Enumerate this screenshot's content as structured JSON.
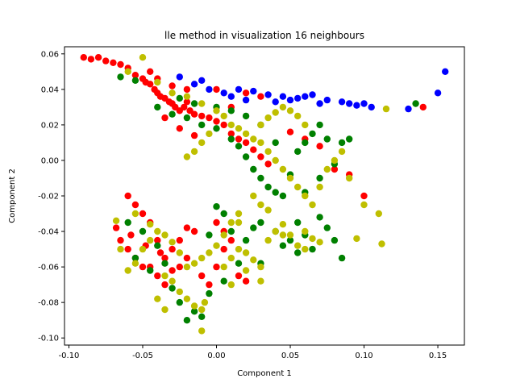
{
  "chart_data": {
    "type": "scatter",
    "title": "lle method in visualization 16 neighbours",
    "xlabel": "Component 1",
    "ylabel": "Component 2",
    "xlim": [
      -0.103,
      0.168
    ],
    "ylim": [
      -0.104,
      0.064
    ],
    "xticks": [
      "-0.10",
      "-0.05",
      "0.00",
      "0.05",
      "0.10",
      "0.15"
    ],
    "xtick_values": [
      -0.1,
      -0.05,
      0.0,
      0.05,
      0.1,
      0.15
    ],
    "yticks": [
      "0.06",
      "0.04",
      "0.02",
      "0.00",
      "-0.02",
      "-0.04",
      "-0.06",
      "-0.08",
      "-0.10"
    ],
    "ytick_values": [
      0.06,
      0.04,
      0.02,
      0.0,
      -0.02,
      -0.04,
      -0.06,
      -0.08,
      -0.1
    ],
    "grid": false,
    "series": [
      {
        "color": "#0000ff",
        "points": [
          [
            -0.025,
            0.047
          ],
          [
            -0.015,
            0.043
          ],
          [
            -0.005,
            0.04
          ],
          [
            0.005,
            0.038
          ],
          [
            0.015,
            0.04
          ],
          [
            0.025,
            0.039
          ],
          [
            0.035,
            0.037
          ],
          [
            0.045,
            0.036
          ],
          [
            0.055,
            0.035
          ],
          [
            0.06,
            0.036
          ],
          [
            0.065,
            0.037
          ],
          [
            0.075,
            0.034
          ],
          [
            0.085,
            0.033
          ],
          [
            0.09,
            0.032
          ],
          [
            0.095,
            0.031
          ],
          [
            0.1,
            0.032
          ],
          [
            0.105,
            0.03
          ],
          [
            0.13,
            0.029
          ],
          [
            0.15,
            0.038
          ],
          [
            0.155,
            0.05
          ],
          [
            -0.01,
            0.045
          ],
          [
            0.01,
            0.036
          ],
          [
            0.02,
            0.034
          ],
          [
            0.04,
            0.033
          ],
          [
            0.05,
            0.034
          ],
          [
            0.07,
            0.032
          ]
        ]
      },
      {
        "color": "#ff0000",
        "points": [
          [
            -0.09,
            0.058
          ],
          [
            -0.085,
            0.057
          ],
          [
            -0.08,
            0.058
          ],
          [
            -0.075,
            0.056
          ],
          [
            -0.07,
            0.055
          ],
          [
            -0.065,
            0.054
          ],
          [
            -0.06,
            0.052
          ],
          [
            -0.055,
            0.048
          ],
          [
            -0.05,
            0.046
          ],
          [
            -0.048,
            0.044
          ],
          [
            -0.045,
            0.043
          ],
          [
            -0.042,
            0.04
          ],
          [
            -0.04,
            0.038
          ],
          [
            -0.038,
            0.036
          ],
          [
            -0.035,
            0.035
          ],
          [
            -0.032,
            0.033
          ],
          [
            -0.03,
            0.032
          ],
          [
            -0.028,
            0.03
          ],
          [
            -0.025,
            0.028
          ],
          [
            -0.022,
            0.03
          ],
          [
            -0.02,
            0.033
          ],
          [
            -0.018,
            0.028
          ],
          [
            -0.015,
            0.026
          ],
          [
            -0.01,
            0.025
          ],
          [
            -0.005,
            0.024
          ],
          [
            0.0,
            0.022
          ],
          [
            0.005,
            0.02
          ],
          [
            0.01,
            0.015
          ],
          [
            0.015,
            0.012
          ],
          [
            0.02,
            0.01
          ],
          [
            0.025,
            0.006
          ],
          [
            0.03,
            0.002
          ],
          [
            0.035,
            -0.002
          ],
          [
            -0.035,
            0.024
          ],
          [
            -0.025,
            0.018
          ],
          [
            -0.015,
            0.014
          ],
          [
            0.05,
            0.016
          ],
          [
            0.06,
            0.012
          ],
          [
            0.07,
            0.008
          ],
          [
            0.08,
            -0.005
          ],
          [
            0.09,
            -0.008
          ],
          [
            0.1,
            -0.02
          ],
          [
            0.14,
            0.03
          ],
          [
            -0.045,
            0.05
          ],
          [
            -0.04,
            0.046
          ],
          [
            -0.03,
            0.042
          ],
          [
            -0.02,
            0.04
          ],
          [
            0.0,
            0.04
          ],
          [
            0.02,
            0.038
          ],
          [
            0.03,
            0.036
          ],
          [
            0.01,
            0.03
          ],
          [
            -0.06,
            -0.02
          ],
          [
            -0.055,
            -0.025
          ],
          [
            -0.05,
            -0.03
          ],
          [
            -0.045,
            -0.035
          ],
          [
            -0.065,
            -0.045
          ],
          [
            -0.06,
            -0.05
          ],
          [
            -0.055,
            -0.055
          ],
          [
            -0.05,
            -0.06
          ],
          [
            -0.04,
            -0.045
          ],
          [
            -0.035,
            -0.055
          ],
          [
            -0.03,
            -0.05
          ],
          [
            -0.025,
            -0.06
          ],
          [
            -0.02,
            -0.055
          ],
          [
            -0.015,
            -0.04
          ],
          [
            -0.01,
            -0.065
          ],
          [
            -0.005,
            -0.07
          ],
          [
            0.0,
            -0.06
          ],
          [
            0.005,
            -0.05
          ],
          [
            0.01,
            -0.045
          ],
          [
            0.015,
            -0.065
          ],
          [
            0.02,
            -0.068
          ],
          [
            -0.045,
            -0.06
          ],
          [
            -0.04,
            -0.065
          ],
          [
            -0.035,
            -0.07
          ],
          [
            -0.03,
            -0.062
          ],
          [
            -0.025,
            -0.045
          ],
          [
            -0.02,
            -0.038
          ],
          [
            -0.068,
            -0.038
          ],
          [
            -0.058,
            -0.042
          ],
          [
            -0.048,
            -0.048
          ],
          [
            -0.038,
            -0.052
          ],
          [
            0.0,
            -0.035
          ],
          [
            0.005,
            -0.04
          ]
        ]
      },
      {
        "color": "#008000",
        "points": [
          [
            -0.065,
            0.047
          ],
          [
            -0.055,
            0.045
          ],
          [
            -0.04,
            0.03
          ],
          [
            -0.03,
            0.026
          ],
          [
            -0.02,
            0.024
          ],
          [
            -0.01,
            0.02
          ],
          [
            0.0,
            0.018
          ],
          [
            0.01,
            0.012
          ],
          [
            0.015,
            0.008
          ],
          [
            0.02,
            0.002
          ],
          [
            0.025,
            -0.005
          ],
          [
            0.03,
            -0.01
          ],
          [
            0.035,
            -0.015
          ],
          [
            0.04,
            -0.018
          ],
          [
            0.045,
            -0.02
          ],
          [
            0.05,
            -0.008
          ],
          [
            0.055,
            0.005
          ],
          [
            0.06,
            0.01
          ],
          [
            0.065,
            0.015
          ],
          [
            0.07,
            0.02
          ],
          [
            0.075,
            0.012
          ],
          [
            0.085,
            0.01
          ],
          [
            0.09,
            0.012
          ],
          [
            0.08,
            -0.002
          ],
          [
            0.07,
            -0.01
          ],
          [
            0.06,
            -0.018
          ],
          [
            0.04,
            0.01
          ],
          [
            0.03,
            0.02
          ],
          [
            0.02,
            0.025
          ],
          [
            0.01,
            0.028
          ],
          [
            0.0,
            0.03
          ],
          [
            -0.015,
            0.032
          ],
          [
            -0.025,
            0.035
          ],
          [
            0.135,
            0.032
          ],
          [
            0.03,
            -0.035
          ],
          [
            0.04,
            -0.04
          ],
          [
            0.05,
            -0.045
          ],
          [
            0.055,
            -0.035
          ],
          [
            0.06,
            -0.042
          ],
          [
            0.07,
            -0.032
          ],
          [
            0.08,
            -0.045
          ],
          [
            0.085,
            -0.055
          ],
          [
            0.075,
            -0.038
          ],
          [
            0.065,
            -0.05
          ],
          [
            -0.055,
            -0.055
          ],
          [
            -0.045,
            -0.062
          ],
          [
            -0.035,
            -0.058
          ],
          [
            -0.03,
            -0.072
          ],
          [
            -0.025,
            -0.08
          ],
          [
            -0.02,
            -0.09
          ],
          [
            -0.015,
            -0.085
          ],
          [
            -0.01,
            -0.088
          ],
          [
            -0.005,
            -0.075
          ],
          [
            0.005,
            -0.068
          ],
          [
            0.015,
            -0.058
          ],
          [
            0.02,
            -0.045
          ],
          [
            0.025,
            -0.038
          ],
          [
            0.01,
            -0.04
          ],
          [
            -0.005,
            -0.042
          ],
          [
            -0.05,
            -0.04
          ],
          [
            -0.04,
            -0.048
          ],
          [
            -0.06,
            -0.035
          ],
          [
            0.03,
            -0.058
          ],
          [
            0.045,
            -0.048
          ],
          [
            0.055,
            -0.052
          ],
          [
            0.005,
            -0.03
          ],
          [
            0.0,
            -0.026
          ]
        ]
      },
      {
        "color": "#bfbf00",
        "points": [
          [
            -0.06,
            0.05
          ],
          [
            -0.05,
            0.058
          ],
          [
            -0.04,
            0.044
          ],
          [
            -0.03,
            0.038
          ],
          [
            -0.02,
            0.036
          ],
          [
            -0.01,
            0.032
          ],
          [
            0.0,
            0.028
          ],
          [
            0.005,
            0.025
          ],
          [
            0.01,
            0.02
          ],
          [
            0.015,
            0.018
          ],
          [
            0.02,
            0.015
          ],
          [
            0.025,
            0.012
          ],
          [
            0.03,
            0.01
          ],
          [
            0.035,
            0.005
          ],
          [
            0.04,
            0.0
          ],
          [
            0.045,
            -0.005
          ],
          [
            0.05,
            -0.01
          ],
          [
            0.055,
            -0.015
          ],
          [
            0.06,
            -0.02
          ],
          [
            0.065,
            -0.025
          ],
          [
            0.07,
            -0.015
          ],
          [
            0.075,
            -0.005
          ],
          [
            0.08,
            0.0
          ],
          [
            0.085,
            0.005
          ],
          [
            0.09,
            -0.01
          ],
          [
            0.1,
            -0.025
          ],
          [
            0.11,
            -0.03
          ],
          [
            0.115,
            0.029
          ],
          [
            0.06,
            0.02
          ],
          [
            0.055,
            0.025
          ],
          [
            0.05,
            0.028
          ],
          [
            0.045,
            0.03
          ],
          [
            0.04,
            0.027
          ],
          [
            0.035,
            0.024
          ],
          [
            0.03,
            0.02
          ],
          [
            -0.005,
            0.015
          ],
          [
            -0.01,
            0.01
          ],
          [
            -0.015,
            0.005
          ],
          [
            -0.02,
            0.002
          ],
          [
            0.025,
            -0.02
          ],
          [
            0.03,
            -0.025
          ],
          [
            0.035,
            -0.028
          ],
          [
            0.015,
            -0.03
          ],
          [
            0.01,
            -0.035
          ],
          [
            0.005,
            -0.042
          ],
          [
            0.0,
            -0.048
          ],
          [
            -0.005,
            -0.052
          ],
          [
            -0.01,
            -0.055
          ],
          [
            -0.015,
            -0.058
          ],
          [
            -0.02,
            -0.06
          ],
          [
            -0.025,
            -0.052
          ],
          [
            -0.03,
            -0.046
          ],
          [
            -0.035,
            -0.042
          ],
          [
            -0.04,
            -0.04
          ],
          [
            -0.045,
            -0.045
          ],
          [
            -0.05,
            -0.05
          ],
          [
            -0.055,
            -0.058
          ],
          [
            -0.06,
            -0.062
          ],
          [
            -0.065,
            -0.05
          ],
          [
            -0.068,
            -0.034
          ],
          [
            -0.055,
            -0.03
          ],
          [
            -0.045,
            -0.036
          ],
          [
            -0.035,
            -0.065
          ],
          [
            -0.03,
            -0.068
          ],
          [
            -0.025,
            -0.074
          ],
          [
            -0.02,
            -0.078
          ],
          [
            -0.015,
            -0.082
          ],
          [
            -0.01,
            -0.084
          ],
          [
            -0.008,
            -0.08
          ],
          [
            -0.01,
            -0.096
          ],
          [
            0.005,
            -0.06
          ],
          [
            0.01,
            -0.055
          ],
          [
            0.015,
            -0.05
          ],
          [
            0.02,
            -0.052
          ],
          [
            0.025,
            -0.056
          ],
          [
            0.03,
            -0.06
          ],
          [
            0.035,
            -0.045
          ],
          [
            0.04,
            -0.04
          ],
          [
            0.045,
            -0.036
          ],
          [
            0.05,
            -0.042
          ],
          [
            0.055,
            -0.048
          ],
          [
            0.06,
            -0.04
          ],
          [
            0.065,
            -0.044
          ],
          [
            0.07,
            -0.046
          ],
          [
            0.095,
            -0.044
          ],
          [
            0.112,
            -0.047
          ],
          [
            0.03,
            -0.068
          ],
          [
            0.02,
            -0.062
          ],
          [
            0.01,
            -0.07
          ],
          [
            -0.04,
            -0.078
          ],
          [
            -0.035,
            -0.084
          ],
          [
            0.06,
            -0.05
          ],
          [
            0.045,
            -0.042
          ],
          [
            0.015,
            -0.035
          ]
        ]
      }
    ]
  }
}
